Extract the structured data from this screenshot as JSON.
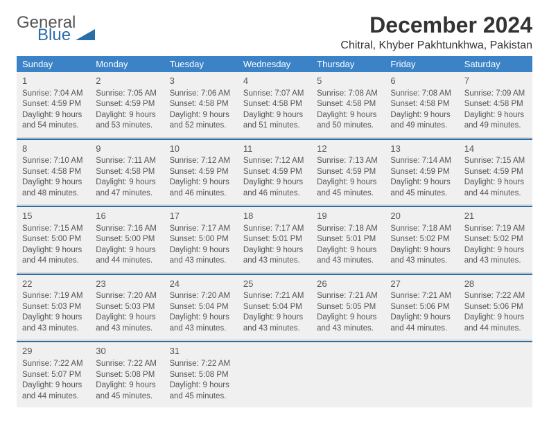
{
  "brand": {
    "line1": "General",
    "line2": "Blue"
  },
  "header": {
    "month": "December 2024",
    "location": "Chitral, Khyber Pakhtunkhwa, Pakistan"
  },
  "colors": {
    "accent": "#3b82c7",
    "separator": "#2a6ea8",
    "band": "#d9d9d9",
    "cell_bg": "#f0f0f0",
    "text": "#333333",
    "muted": "#555555",
    "page_bg": "#ffffff"
  },
  "weekdays": [
    "Sunday",
    "Monday",
    "Tuesday",
    "Wednesday",
    "Thursday",
    "Friday",
    "Saturday"
  ],
  "calendar": {
    "type": "table",
    "columns": 7,
    "rows": 5,
    "days": [
      {
        "n": "1",
        "sr": "Sunrise: 7:04 AM",
        "ss": "Sunset: 4:59 PM",
        "d1": "Daylight: 9 hours",
        "d2": "and 54 minutes."
      },
      {
        "n": "2",
        "sr": "Sunrise: 7:05 AM",
        "ss": "Sunset: 4:59 PM",
        "d1": "Daylight: 9 hours",
        "d2": "and 53 minutes."
      },
      {
        "n": "3",
        "sr": "Sunrise: 7:06 AM",
        "ss": "Sunset: 4:58 PM",
        "d1": "Daylight: 9 hours",
        "d2": "and 52 minutes."
      },
      {
        "n": "4",
        "sr": "Sunrise: 7:07 AM",
        "ss": "Sunset: 4:58 PM",
        "d1": "Daylight: 9 hours",
        "d2": "and 51 minutes."
      },
      {
        "n": "5",
        "sr": "Sunrise: 7:08 AM",
        "ss": "Sunset: 4:58 PM",
        "d1": "Daylight: 9 hours",
        "d2": "and 50 minutes."
      },
      {
        "n": "6",
        "sr": "Sunrise: 7:08 AM",
        "ss": "Sunset: 4:58 PM",
        "d1": "Daylight: 9 hours",
        "d2": "and 49 minutes."
      },
      {
        "n": "7",
        "sr": "Sunrise: 7:09 AM",
        "ss": "Sunset: 4:58 PM",
        "d1": "Daylight: 9 hours",
        "d2": "and 49 minutes."
      },
      {
        "n": "8",
        "sr": "Sunrise: 7:10 AM",
        "ss": "Sunset: 4:58 PM",
        "d1": "Daylight: 9 hours",
        "d2": "and 48 minutes."
      },
      {
        "n": "9",
        "sr": "Sunrise: 7:11 AM",
        "ss": "Sunset: 4:58 PM",
        "d1": "Daylight: 9 hours",
        "d2": "and 47 minutes."
      },
      {
        "n": "10",
        "sr": "Sunrise: 7:12 AM",
        "ss": "Sunset: 4:59 PM",
        "d1": "Daylight: 9 hours",
        "d2": "and 46 minutes."
      },
      {
        "n": "11",
        "sr": "Sunrise: 7:12 AM",
        "ss": "Sunset: 4:59 PM",
        "d1": "Daylight: 9 hours",
        "d2": "and 46 minutes."
      },
      {
        "n": "12",
        "sr": "Sunrise: 7:13 AM",
        "ss": "Sunset: 4:59 PM",
        "d1": "Daylight: 9 hours",
        "d2": "and 45 minutes."
      },
      {
        "n": "13",
        "sr": "Sunrise: 7:14 AM",
        "ss": "Sunset: 4:59 PM",
        "d1": "Daylight: 9 hours",
        "d2": "and 45 minutes."
      },
      {
        "n": "14",
        "sr": "Sunrise: 7:15 AM",
        "ss": "Sunset: 4:59 PM",
        "d1": "Daylight: 9 hours",
        "d2": "and 44 minutes."
      },
      {
        "n": "15",
        "sr": "Sunrise: 7:15 AM",
        "ss": "Sunset: 5:00 PM",
        "d1": "Daylight: 9 hours",
        "d2": "and 44 minutes."
      },
      {
        "n": "16",
        "sr": "Sunrise: 7:16 AM",
        "ss": "Sunset: 5:00 PM",
        "d1": "Daylight: 9 hours",
        "d2": "and 44 minutes."
      },
      {
        "n": "17",
        "sr": "Sunrise: 7:17 AM",
        "ss": "Sunset: 5:00 PM",
        "d1": "Daylight: 9 hours",
        "d2": "and 43 minutes."
      },
      {
        "n": "18",
        "sr": "Sunrise: 7:17 AM",
        "ss": "Sunset: 5:01 PM",
        "d1": "Daylight: 9 hours",
        "d2": "and 43 minutes."
      },
      {
        "n": "19",
        "sr": "Sunrise: 7:18 AM",
        "ss": "Sunset: 5:01 PM",
        "d1": "Daylight: 9 hours",
        "d2": "and 43 minutes."
      },
      {
        "n": "20",
        "sr": "Sunrise: 7:18 AM",
        "ss": "Sunset: 5:02 PM",
        "d1": "Daylight: 9 hours",
        "d2": "and 43 minutes."
      },
      {
        "n": "21",
        "sr": "Sunrise: 7:19 AM",
        "ss": "Sunset: 5:02 PM",
        "d1": "Daylight: 9 hours",
        "d2": "and 43 minutes."
      },
      {
        "n": "22",
        "sr": "Sunrise: 7:19 AM",
        "ss": "Sunset: 5:03 PM",
        "d1": "Daylight: 9 hours",
        "d2": "and 43 minutes."
      },
      {
        "n": "23",
        "sr": "Sunrise: 7:20 AM",
        "ss": "Sunset: 5:03 PM",
        "d1": "Daylight: 9 hours",
        "d2": "and 43 minutes."
      },
      {
        "n": "24",
        "sr": "Sunrise: 7:20 AM",
        "ss": "Sunset: 5:04 PM",
        "d1": "Daylight: 9 hours",
        "d2": "and 43 minutes."
      },
      {
        "n": "25",
        "sr": "Sunrise: 7:21 AM",
        "ss": "Sunset: 5:04 PM",
        "d1": "Daylight: 9 hours",
        "d2": "and 43 minutes."
      },
      {
        "n": "26",
        "sr": "Sunrise: 7:21 AM",
        "ss": "Sunset: 5:05 PM",
        "d1": "Daylight: 9 hours",
        "d2": "and 43 minutes."
      },
      {
        "n": "27",
        "sr": "Sunrise: 7:21 AM",
        "ss": "Sunset: 5:06 PM",
        "d1": "Daylight: 9 hours",
        "d2": "and 44 minutes."
      },
      {
        "n": "28",
        "sr": "Sunrise: 7:22 AM",
        "ss": "Sunset: 5:06 PM",
        "d1": "Daylight: 9 hours",
        "d2": "and 44 minutes."
      },
      {
        "n": "29",
        "sr": "Sunrise: 7:22 AM",
        "ss": "Sunset: 5:07 PM",
        "d1": "Daylight: 9 hours",
        "d2": "and 44 minutes."
      },
      {
        "n": "30",
        "sr": "Sunrise: 7:22 AM",
        "ss": "Sunset: 5:08 PM",
        "d1": "Daylight: 9 hours",
        "d2": "and 45 minutes."
      },
      {
        "n": "31",
        "sr": "Sunrise: 7:22 AM",
        "ss": "Sunset: 5:08 PM",
        "d1": "Daylight: 9 hours",
        "d2": "and 45 minutes."
      }
    ]
  }
}
